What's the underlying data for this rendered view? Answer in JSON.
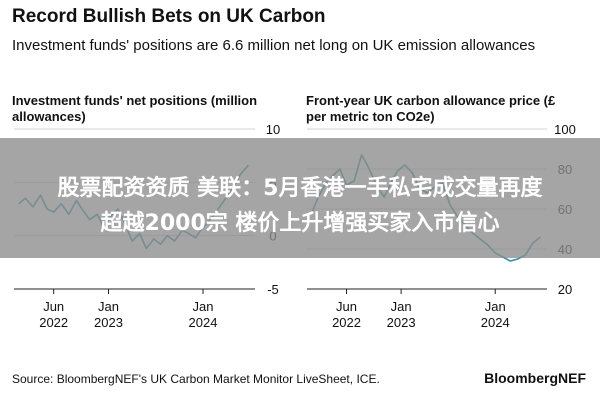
{
  "header": {
    "title": "Record Bullish Bets on UK Carbon",
    "subtitle": "Investment funds' positions are 6.6 million net long on UK emission allowances"
  },
  "overlay": {
    "line1": "股票配资资质 美联：5月香港一手私宅成交量再度",
    "line2": "超越2000宗 楼价上升增强买家入市信心"
  },
  "footer": {
    "source": "Source: BloombergNEF's UK Carbon Market Monitor LiveSheet, ICE.",
    "brand": "BloombergNEF"
  },
  "colors": {
    "line": "#2f93a8",
    "axis": "#222222",
    "grid": "#d3d3d3",
    "overlay": "#8c8c8c"
  },
  "chart_data": [
    {
      "type": "line",
      "title": "Investment funds' net positions (million allowances)",
      "ylim": [
        -5,
        10
      ],
      "yticks": [
        -5,
        0,
        5,
        10
      ],
      "xlim": [
        2022.0,
        2024.55
      ],
      "xticks": [
        {
          "x": 2022.42,
          "label": "Jun",
          "sub": "2022"
        },
        {
          "x": 2023.0,
          "label": "Jan",
          "sub": "2023"
        },
        {
          "x": 2024.0,
          "label": "Jan",
          "sub": "2024"
        }
      ],
      "series": [
        {
          "x": [
            2022.05,
            2022.12,
            2022.2,
            2022.28,
            2022.35,
            2022.42,
            2022.5,
            2022.58,
            2022.66,
            2022.72,
            2022.8,
            2022.88,
            2022.95,
            2023.02,
            2023.1,
            2023.18,
            2023.25,
            2023.33,
            2023.4,
            2023.48,
            2023.55,
            2023.62,
            2023.7,
            2023.78,
            2023.85,
            2023.92,
            2024.0,
            2024.08,
            2024.16,
            2024.24,
            2024.32,
            2024.4,
            2024.48
          ],
          "y": [
            3.0,
            3.5,
            2.7,
            3.8,
            2.5,
            2.2,
            3.0,
            2.0,
            3.3,
            2.5,
            1.5,
            2.0,
            0.8,
            1.8,
            2.5,
            1.0,
            -0.5,
            0.2,
            -1.2,
            -0.3,
            -0.8,
            0.0,
            -0.5,
            0.5,
            0.2,
            -0.2,
            0.8,
            1.5,
            2.5,
            3.5,
            4.5,
            5.8,
            6.6
          ]
        }
      ]
    },
    {
      "type": "line",
      "title": "Front-year UK carbon allowance price (£ per metric ton CO2e)",
      "ylim": [
        20,
        100
      ],
      "yticks": [
        20,
        40,
        60,
        80,
        100
      ],
      "xlim": [
        2022.0,
        2024.55
      ],
      "xticks": [
        {
          "x": 2022.42,
          "label": "Jun",
          "sub": "2022"
        },
        {
          "x": 2023.0,
          "label": "Jan",
          "sub": "2023"
        },
        {
          "x": 2024.0,
          "label": "Jan",
          "sub": "2024"
        }
      ],
      "series": [
        {
          "x": [
            2022.05,
            2022.12,
            2022.2,
            2022.28,
            2022.35,
            2022.42,
            2022.5,
            2022.58,
            2022.64,
            2022.7,
            2022.76,
            2022.82,
            2022.9,
            2022.96,
            2023.04,
            2023.12,
            2023.2,
            2023.28,
            2023.36,
            2023.44,
            2023.52,
            2023.6,
            2023.68,
            2023.76,
            2023.84,
            2023.92,
            2024.0,
            2024.08,
            2024.16,
            2024.24,
            2024.32,
            2024.4,
            2024.48
          ],
          "y": [
            58,
            66,
            73,
            77,
            80,
            72,
            74,
            87,
            82,
            76,
            70,
            66,
            74,
            79,
            82,
            78,
            70,
            68,
            71,
            73,
            62,
            56,
            52,
            48,
            45,
            42,
            38,
            36,
            34,
            35,
            37,
            43,
            46
          ]
        }
      ]
    }
  ]
}
